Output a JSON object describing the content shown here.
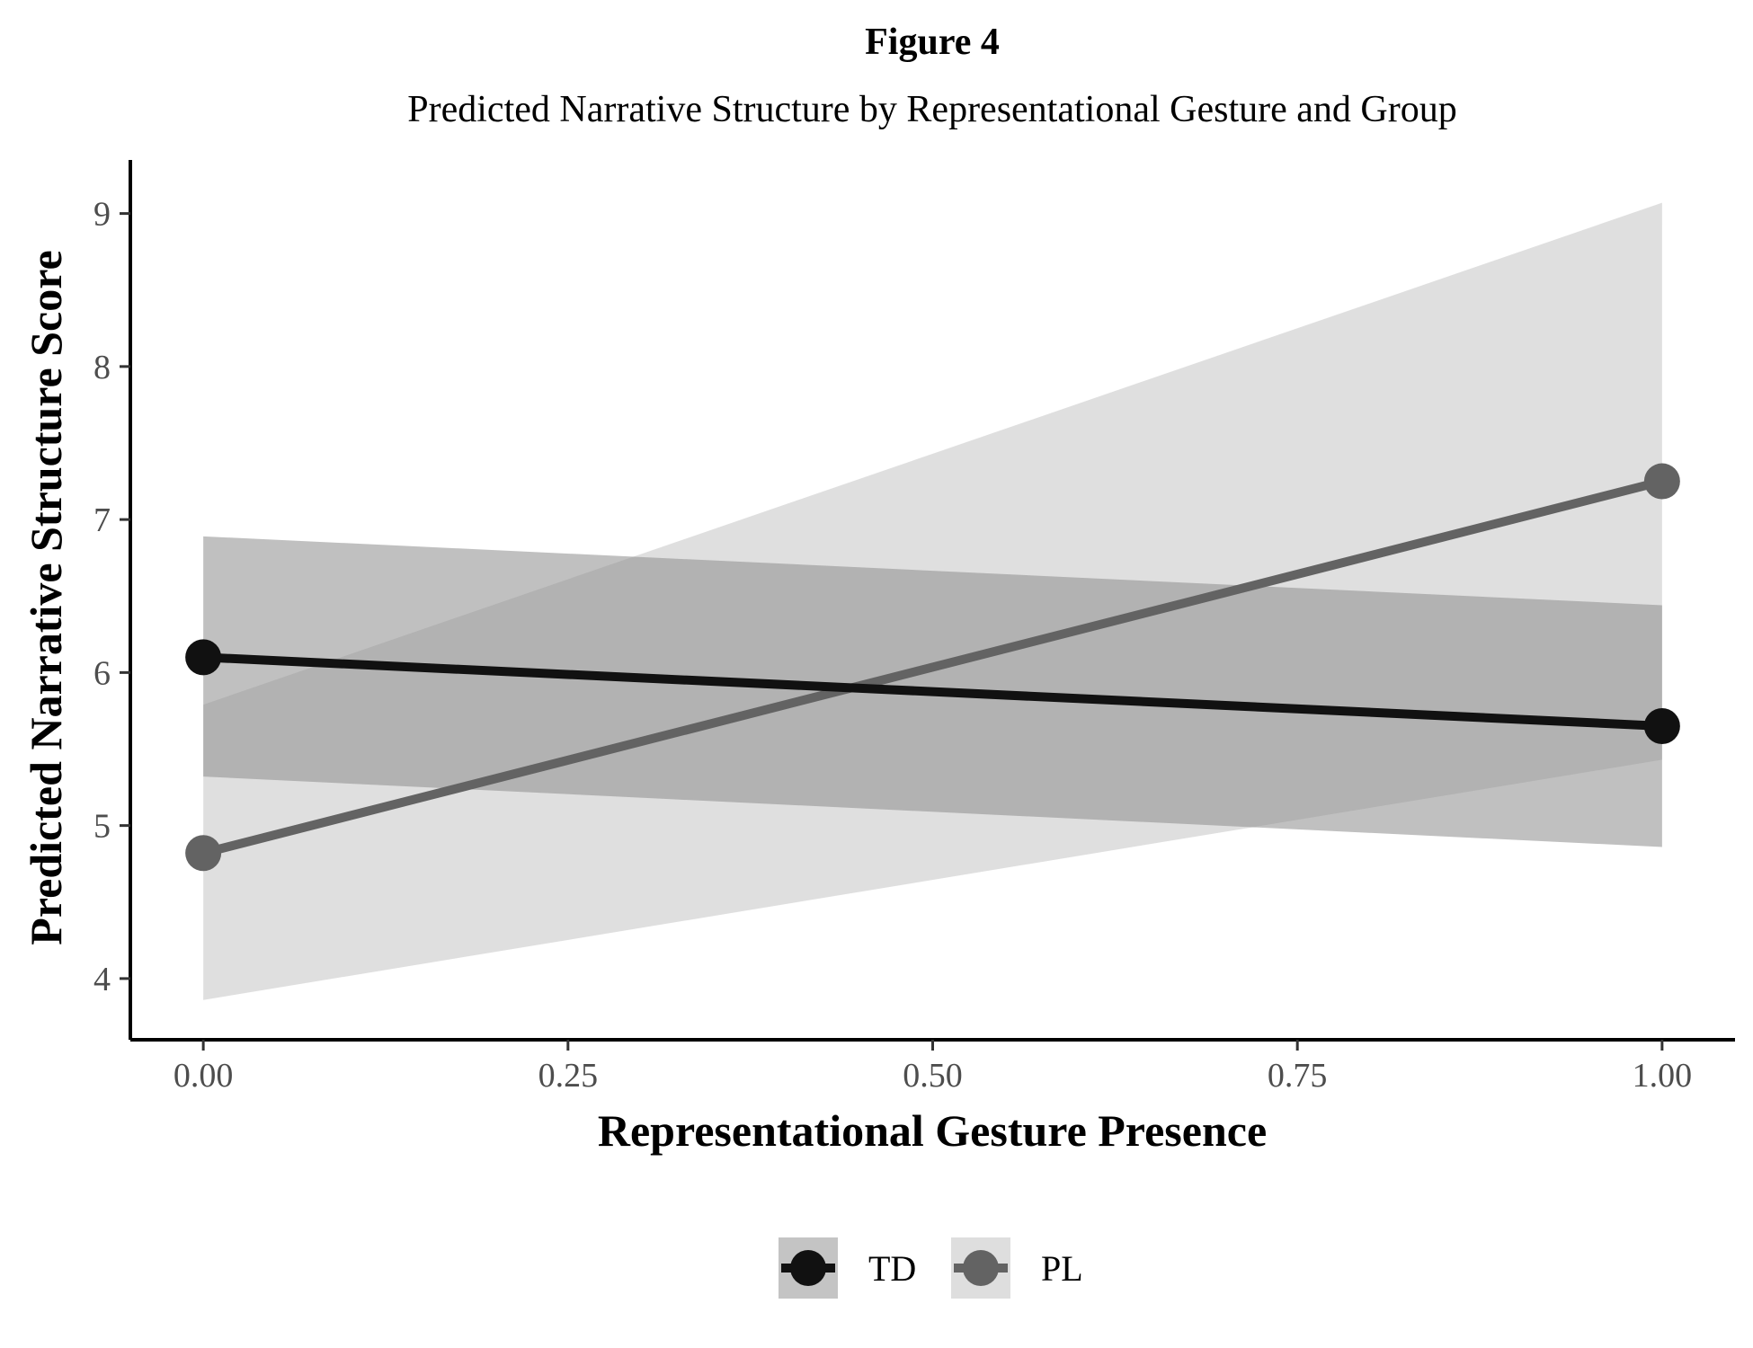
{
  "figure": {
    "label": "Figure 4",
    "title": "Predicted Narrative Structure by Representational Gesture and Group"
  },
  "chart_data": {
    "type": "line",
    "xlabel": "Representational Gesture Presence",
    "ylabel": "Predicted Narrative Structure Score",
    "xlim": [
      -0.05,
      1.05
    ],
    "ylim": [
      3.6,
      9.35
    ],
    "x_ticks": [
      0.0,
      0.25,
      0.5,
      0.75,
      1.0
    ],
    "x_tick_labels": [
      "0.00",
      "0.25",
      "0.50",
      "0.75",
      "1.00"
    ],
    "y_ticks": [
      4,
      5,
      6,
      7,
      8,
      9
    ],
    "y_tick_labels": [
      "4",
      "5",
      "6",
      "7",
      "8",
      "9"
    ],
    "grid": false,
    "legend_position": "bottom",
    "series": [
      {
        "name": "TD",
        "color": "#111111",
        "ribbon_color": "#b3b3b3",
        "x": [
          0.0,
          1.0
        ],
        "y": [
          6.1,
          5.65
        ],
        "ci_lower": [
          5.32,
          4.86
        ],
        "ci_upper": [
          6.89,
          6.44
        ]
      },
      {
        "name": "PL",
        "color": "#636363",
        "ribbon_color": "#d9d9d9",
        "x": [
          0.0,
          1.0
        ],
        "y": [
          4.82,
          7.25
        ],
        "ci_lower": [
          3.86,
          5.43
        ],
        "ci_upper": [
          5.79,
          9.07
        ]
      }
    ]
  }
}
